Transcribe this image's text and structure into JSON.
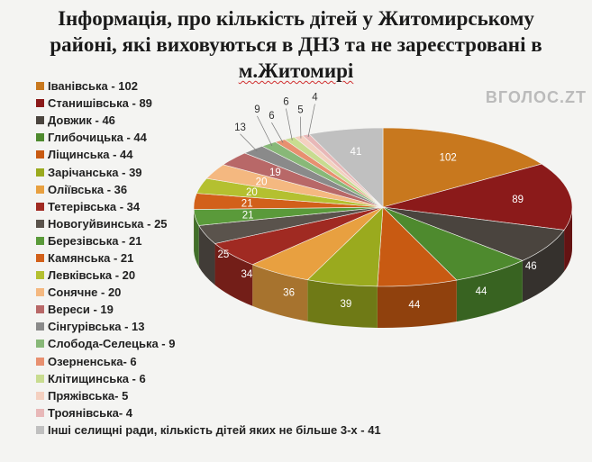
{
  "watermark": "ВГОЛОС.ZT",
  "chart_data": {
    "type": "pie",
    "title_lines": [
      "Інформація, про кількість дітей у Житомирському",
      "районі, які виховуються в ДНЗ та не зареєстровані в",
      "м.Житомирі"
    ],
    "legend_position": "left",
    "slices": [
      {
        "name": "Іванівська",
        "value": 102,
        "legend": "Іванівська - 102",
        "color": "#C8781E"
      },
      {
        "name": "Станишівська",
        "value": 89,
        "legend": "Станишівська - 89",
        "color": "#8B1A1A"
      },
      {
        "name": "Довжик",
        "value": 46,
        "legend": "Довжик - 46",
        "color": "#4A443E"
      },
      {
        "name": "Глибочицька",
        "value": 44,
        "legend": "Глибочицька - 44",
        "color": "#4E8A2E"
      },
      {
        "name": "Ліщинська",
        "value": 44,
        "legend": "Ліщинська - 44",
        "color": "#C85A12"
      },
      {
        "name": "Зарічанська",
        "value": 39,
        "legend": "Зарічанська - 39",
        "color": "#9AAA1E"
      },
      {
        "name": "Оліївська",
        "value": 36,
        "legend": "Оліївська - 36",
        "color": "#E8A040"
      },
      {
        "name": "Тетерівська",
        "value": 34,
        "legend": "Тетерівська - 34",
        "color": "#A02A22"
      },
      {
        "name": "Новогуйвинська",
        "value": 25,
        "legend": "Новогуйвинська - 25",
        "color": "#5A534C"
      },
      {
        "name": "Березівська",
        "value": 21,
        "legend": "Березівська - 21",
        "color": "#5A9A3A"
      },
      {
        "name": "Камянська",
        "value": 21,
        "legend": "Камянська - 21",
        "color": "#D2601A"
      },
      {
        "name": "Левківська",
        "value": 20,
        "legend": "Левківська - 20",
        "color": "#B4C030"
      },
      {
        "name": "Сонячне",
        "value": 20,
        "legend": "Сонячне - 20",
        "color": "#F4B880"
      },
      {
        "name": "Вереси",
        "value": 19,
        "legend": "Вереси - 19",
        "color": "#B86868"
      },
      {
        "name": "Сінгурівська",
        "value": 13,
        "legend": "Сінгурівська - 13",
        "color": "#8A8A8A"
      },
      {
        "name": "Слобода-Селецька",
        "value": 9,
        "legend": "Слобода-Селецька - 9",
        "color": "#88B878"
      },
      {
        "name": "Озерненська",
        "value": 6,
        "legend": "Озерненська- 6",
        "color": "#E89070"
      },
      {
        "name": "Клітищинська",
        "value": 6,
        "legend": "Клітищинська - 6",
        "color": "#C8DC90"
      },
      {
        "name": "Пряжівська",
        "value": 5,
        "legend": "Пряжівська- 5",
        "color": "#F4D0C0"
      },
      {
        "name": "Троянівська",
        "value": 4,
        "legend": "Троянівська- 4",
        "color": "#E8B8B8"
      },
      {
        "name": "Інші селищні ради, кількість дітей яких не більше 3-х",
        "value": 41,
        "legend": "Інші селищні ради, кількість дітей яких не більше 3-х - 41",
        "color": "#C0C0C0"
      }
    ]
  }
}
